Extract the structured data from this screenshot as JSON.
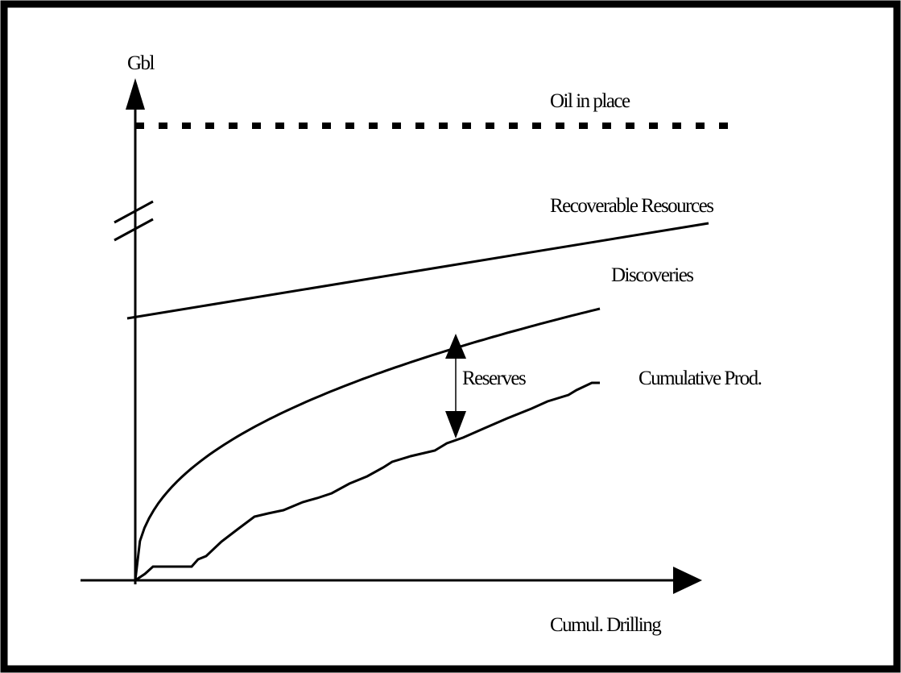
{
  "axes": {
    "y_label": "Gbl",
    "x_label": "Cumul. Drilling"
  },
  "curves": {
    "oil_in_place": "Oil in place",
    "recoverable": "Recoverable Resources",
    "discoveries": "Discoveries",
    "cumulative": "Cumulative Prod."
  },
  "annotation": "Reserves"
}
